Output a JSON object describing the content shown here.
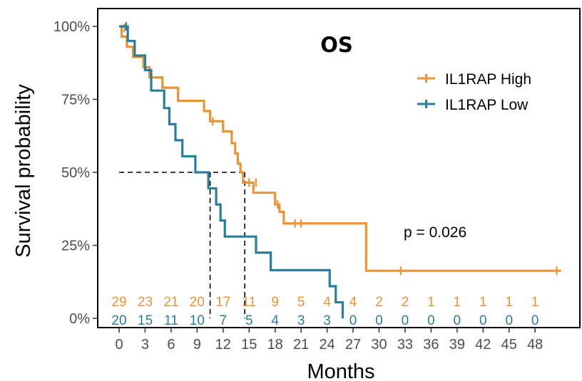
{
  "chart_data": {
    "type": "line",
    "subtype": "kaplan-meier",
    "title": "OS",
    "xlabel": "Months",
    "ylabel": "Survival probability",
    "xlim": [
      0,
      51
    ],
    "ylim": [
      0,
      1
    ],
    "x_ticks": [
      0,
      3,
      6,
      9,
      12,
      15,
      18,
      21,
      24,
      27,
      30,
      33,
      36,
      39,
      42,
      45,
      48
    ],
    "x_tick_labels": [
      "0",
      "3",
      "6",
      "9",
      "12",
      "15",
      "18",
      "21",
      "24",
      "27",
      "30",
      "33",
      "36",
      "39",
      "42",
      "45",
      "48"
    ],
    "y_ticks": [
      0,
      0.25,
      0.5,
      0.75,
      1.0
    ],
    "y_tick_labels": [
      "0%",
      "25%",
      "50%",
      "75%",
      "100%"
    ],
    "grid": false,
    "legend_position": "top-right",
    "annotation": "p = 0.026",
    "median_lines": [
      10.5,
      14.5
    ],
    "series": [
      {
        "name": "IL1RAP High",
        "color": "#E8943A",
        "steps": [
          [
            0,
            1.0
          ],
          [
            0.3,
            0.965
          ],
          [
            0.9,
            0.93
          ],
          [
            1.6,
            0.895
          ],
          [
            2.8,
            0.86
          ],
          [
            3.5,
            0.825
          ],
          [
            5.0,
            0.79
          ],
          [
            6.8,
            0.745
          ],
          [
            9.8,
            0.71
          ],
          [
            10.5,
            0.675
          ],
          [
            12.0,
            0.64
          ],
          [
            13.0,
            0.6
          ],
          [
            13.4,
            0.565
          ],
          [
            13.7,
            0.53
          ],
          [
            14.0,
            0.5
          ],
          [
            14.3,
            0.465
          ],
          [
            15.5,
            0.43
          ],
          [
            18.0,
            0.39
          ],
          [
            18.5,
            0.365
          ],
          [
            19.0,
            0.325
          ],
          [
            28.5,
            0.163
          ],
          [
            51,
            0.163
          ]
        ],
        "censor": [
          [
            0.6,
            0.995
          ],
          [
            10.8,
            0.675
          ],
          [
            15.0,
            0.465
          ],
          [
            15.8,
            0.465
          ],
          [
            18.3,
            0.39
          ],
          [
            20.3,
            0.325
          ],
          [
            21.0,
            0.325
          ],
          [
            32.5,
            0.163
          ],
          [
            50.5,
            0.163
          ]
        ]
      },
      {
        "name": "IL1RAP Low",
        "color": "#2B7D9B",
        "steps": [
          [
            0,
            1.0
          ],
          [
            1.0,
            0.95
          ],
          [
            1.8,
            0.9
          ],
          [
            3.0,
            0.85
          ],
          [
            3.7,
            0.78
          ],
          [
            5.2,
            0.72
          ],
          [
            5.8,
            0.665
          ],
          [
            6.5,
            0.61
          ],
          [
            7.3,
            0.555
          ],
          [
            8.8,
            0.5
          ],
          [
            10.3,
            0.445
          ],
          [
            11.2,
            0.39
          ],
          [
            11.7,
            0.335
          ],
          [
            12.2,
            0.28
          ],
          [
            15.8,
            0.225
          ],
          [
            17.5,
            0.165
          ],
          [
            24.3,
            0.11
          ],
          [
            25.0,
            0.055
          ],
          [
            25.8,
            0.0
          ]
        ],
        "censor": [
          [
            0.8,
            1.0
          ]
        ]
      }
    ],
    "risk_table": {
      "x": [
        0,
        3,
        6,
        9,
        12,
        15,
        18,
        21,
        24,
        27,
        30,
        33,
        36,
        39,
        42,
        45,
        48
      ],
      "high": [
        "29",
        "23",
        "21",
        "20",
        "17",
        "11",
        "9",
        "5",
        "4",
        "4",
        "2",
        "2",
        "1",
        "1",
        "1",
        "1",
        "1"
      ],
      "low": [
        "20",
        "15",
        "11",
        "10",
        "7",
        "5",
        "4",
        "3",
        "3",
        "0",
        "0",
        "0",
        "0",
        "0",
        "0",
        "0",
        "0"
      ]
    }
  }
}
